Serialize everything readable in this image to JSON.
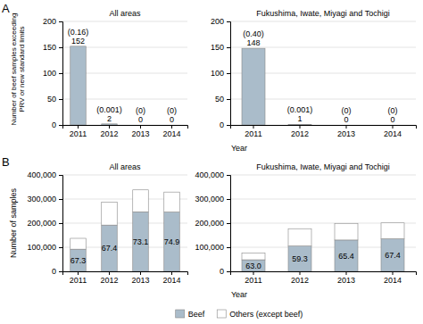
{
  "chart_data": [
    {
      "type": "bar",
      "title": "All areas",
      "annotations": [
        "A"
      ],
      "y_label": "Number of beef samples exceeding\nPRV or new standard limits",
      "x_label": "Year",
      "categories": [
        "2011",
        "2012",
        "2013",
        "2014"
      ],
      "values": [
        152,
        2,
        0,
        0
      ],
      "color": "#aabcca",
      "data_labels": true,
      "rates": [
        0.16,
        0.001,
        0,
        0
      ],
      "rate_labels": [
        "(0.16)",
        "(0.001)",
        "(0)",
        "(0)"
      ],
      "ylim": [
        0,
        200
      ],
      "yticks": [
        0,
        50,
        100,
        150,
        200
      ],
      "grid": true
    },
    {
      "type": "bar",
      "title": "Fukushima, Iwate, Miyagi and Tochigi",
      "categories": [
        "2011",
        "2012",
        "2013",
        "2014"
      ],
      "values": [
        148,
        1,
        0,
        0
      ],
      "color": "#aabcca",
      "data_labels": true,
      "rates": [
        0.4,
        0.001,
        0,
        0
      ],
      "rate_labels": [
        "(0.40)",
        "(0.001)",
        "(0)",
        "(0)"
      ],
      "ylim": [
        0,
        200
      ],
      "yticks": [
        0,
        50,
        100,
        150,
        200
      ],
      "grid": true
    },
    {
      "type": "bar",
      "stacked": true,
      "title": "All areas",
      "annotations": [
        "B"
      ],
      "y_label": "Number of samples",
      "x_label": "Year",
      "categories": [
        "2011",
        "2012",
        "2013",
        "2014"
      ],
      "series": [
        {
          "name": "Beef",
          "color": "#aabcca",
          "values": [
            92000,
            192000,
            247000,
            246000
          ],
          "shares": [
            67.3,
            67.4,
            73.1,
            74.9
          ],
          "share_labels": [
            "67.3",
            "67.4",
            "73.1",
            "74.9"
          ]
        },
        {
          "name": "Others (except beef)",
          "color": "#ffffff",
          "values": [
            45000,
            95000,
            91000,
            83000
          ]
        }
      ],
      "ylim": [
        0,
        400000
      ],
      "yticks": [
        0,
        {
          "value": 100000,
          "label": "100,000"
        },
        {
          "value": 200000,
          "label": "200,000"
        },
        {
          "value": 300000,
          "label": "300,000"
        },
        {
          "value": 400000,
          "label": "400,000"
        }
      ],
      "grid": true,
      "legend": "bottom"
    },
    {
      "type": "bar",
      "stacked": true,
      "title": "Fukushima, Iwate, Miyagi and Tochigi",
      "categories": [
        "2011",
        "2012",
        "2013",
        "2014"
      ],
      "series": [
        {
          "name": "Beef",
          "color": "#aabcca",
          "values": [
            48000,
            105000,
            130000,
            135000
          ],
          "shares": [
            63.0,
            59.3,
            65.4,
            67.4
          ],
          "share_labels": [
            "63.0",
            "59.3",
            "65.4",
            "67.4"
          ]
        },
        {
          "name": "Others (except beef)",
          "color": "#ffffff",
          "values": [
            28000,
            72000,
            69000,
            66000
          ]
        }
      ],
      "ylim": [
        0,
        400000
      ],
      "yticks": [
        0,
        {
          "value": 100000,
          "label": "100,000"
        },
        {
          "value": 200000,
          "label": "200,000"
        },
        {
          "value": 300000,
          "label": "300,000"
        },
        {
          "value": 400000,
          "label": "400,000"
        }
      ],
      "grid": true
    }
  ]
}
